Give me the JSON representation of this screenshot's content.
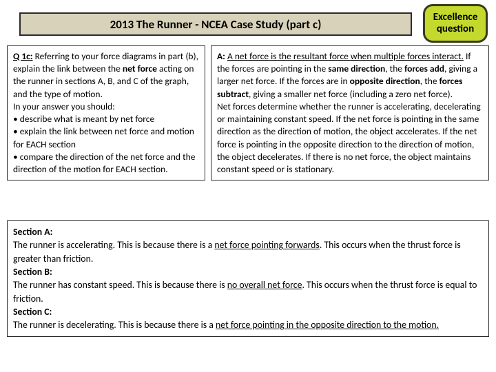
{
  "title": "2013 The Runner - NCEA Case Study (part c)",
  "badge": "Excellence question",
  "question": {
    "lead": "Q 1c:",
    "intro_1": " Referring to your force diagrams in part (b), explain the link between the ",
    "net_force": "net force",
    "intro_2": " acting on the runner in sections A, B, and C of the graph, and the type of motion.",
    "in_your": "In your answer you should:",
    "bullet1": "• describe what is meant by net force",
    "bullet2": "• explain the link between net force and motion for EACH section",
    "bullet3": "• compare the direction of the net force and the direction of the motion for EACH section."
  },
  "answer": {
    "lead": "A: ",
    "def": "A net force is the resultant force when multiple forces interact.",
    "s1": " If the forces are pointing in the ",
    "same": "same direction",
    "s2": ", the ",
    "add": "forces add",
    "s3": ", giving a larger net force. If the forces are in ",
    "opp": "opposite direction",
    "s4": ", the ",
    "sub": "forces subtract",
    "s5": ", giving a smaller net force (including a zero net force).",
    "para2": "Net forces determine whether the runner is accelerating, decelerating or maintaining constant speed. If the net force is pointing in the same direction as the direction of motion, the object accelerates. If the net force is pointing in the opposite direction to the direction of motion, the object decelerates. If there is no net force, the object maintains constant speed or is stationary."
  },
  "sections": {
    "a_head": "Section A:",
    "a_1": "The runner is accelerating. This is because there is a ",
    "a_u": "net force pointing forwards",
    "a_2": ". This occurs when the thrust force is greater than friction.",
    "b_head": "Section B:",
    "b_1": "The runner has constant speed. This is because there is ",
    "b_u": "no overall net force",
    "b_2": ". This occurs when the thrust force is equal to friction.",
    "c_head": "Section C:",
    "c_1": "The runner is decelerating. This is because there is a ",
    "c_u": "net force pointing in the opposite direction to the motion."
  },
  "colors": {
    "title_bg": "#d8d2bb",
    "badge_bg": "#c4d92e",
    "border": "#2a2a2a"
  }
}
